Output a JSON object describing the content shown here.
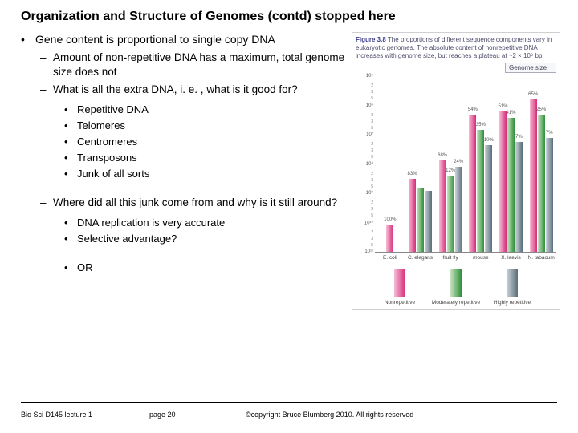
{
  "title": "Organization and Structure of Genomes (contd) stopped here",
  "bullets": {
    "main": "Gene content is proportional to single copy DNA",
    "sub1": "Amount of non-repetitive DNA has a maximum, total genome size does not",
    "sub2": "What is all the extra DNA, i. e. , what is it good for?",
    "list": {
      "a": "Repetitive DNA",
      "b": "Telomeres",
      "c": "Centromeres",
      "d": "Transposons",
      "e": "Junk of all sorts"
    },
    "sub3": "Where did all this junk come from and why is it still around?",
    "list2": {
      "a": "DNA replication is very accurate",
      "b": "Selective advantage?",
      "c": "OR"
    }
  },
  "figure": {
    "fignum": "Figure 3.8",
    "caption_rest": " The proportions of different sequence components vary in eukaryotic genomes. The absolute content of nonrepetitive DNA increases with genome size, but reaches a plateau at ~2 × 10⁹ bp.",
    "legend_box": "Genome size",
    "yticks": [
      "10¹¹",
      "10¹⁰",
      "10⁹",
      "10⁸",
      "10⁷",
      "10⁶",
      "10⁵"
    ],
    "groups": [
      {
        "x": "E. coli",
        "bars": [
          {
            "cls": "b1",
            "h": 18,
            "lbl": "100%"
          }
        ],
        "base": 0
      },
      {
        "x": "C. elegans",
        "bars": [
          {
            "cls": "b1",
            "h": 48,
            "lbl": "83%"
          },
          {
            "cls": "b2",
            "h": 42,
            "lbl": ""
          },
          {
            "cls": "b3",
            "h": 40,
            "lbl": ""
          }
        ],
        "base": 0
      },
      {
        "x": "fruit fly",
        "bars": [
          {
            "cls": "b1",
            "h": 60,
            "lbl": "68%"
          },
          {
            "cls": "b2",
            "h": 50,
            "lbl": "12%"
          },
          {
            "cls": "b3",
            "h": 56,
            "lbl": "24%"
          }
        ],
        "base": 0
      },
      {
        "x": "mouse",
        "bars": [
          {
            "cls": "b1",
            "h": 90,
            "lbl": "54%"
          },
          {
            "cls": "b2",
            "h": 80,
            "lbl": "35%"
          },
          {
            "cls": "b3",
            "h": 70,
            "lbl": "10%"
          }
        ],
        "base": 0
      },
      {
        "x": "X. laevis",
        "bars": [
          {
            "cls": "b1",
            "h": 92,
            "lbl": "51%"
          },
          {
            "cls": "b2",
            "h": 88,
            "lbl": "41%"
          },
          {
            "cls": "b3",
            "h": 72,
            "lbl": "7%"
          }
        ],
        "base": 0
      },
      {
        "x": "N. tabacum",
        "bars": [
          {
            "cls": "b1",
            "h": 100,
            "lbl": "65%"
          },
          {
            "cls": "b2",
            "h": 90,
            "lbl": "25%"
          },
          {
            "cls": "b3",
            "h": 75,
            "lbl": "7%"
          }
        ],
        "base": 0
      }
    ],
    "legend": {
      "a": "Nonrepetitive",
      "b": "Moderately repetitive",
      "c": "Highly repetitive"
    },
    "colors": {
      "b1": "#d52c7a",
      "b2": "#2f8f3a",
      "b3": "#5b6d78"
    }
  },
  "footer": {
    "left": "Bio Sci D145 lecture 1",
    "mid": "page 20",
    "right": "©copyright Bruce Blumberg 2010. All rights reserved"
  }
}
